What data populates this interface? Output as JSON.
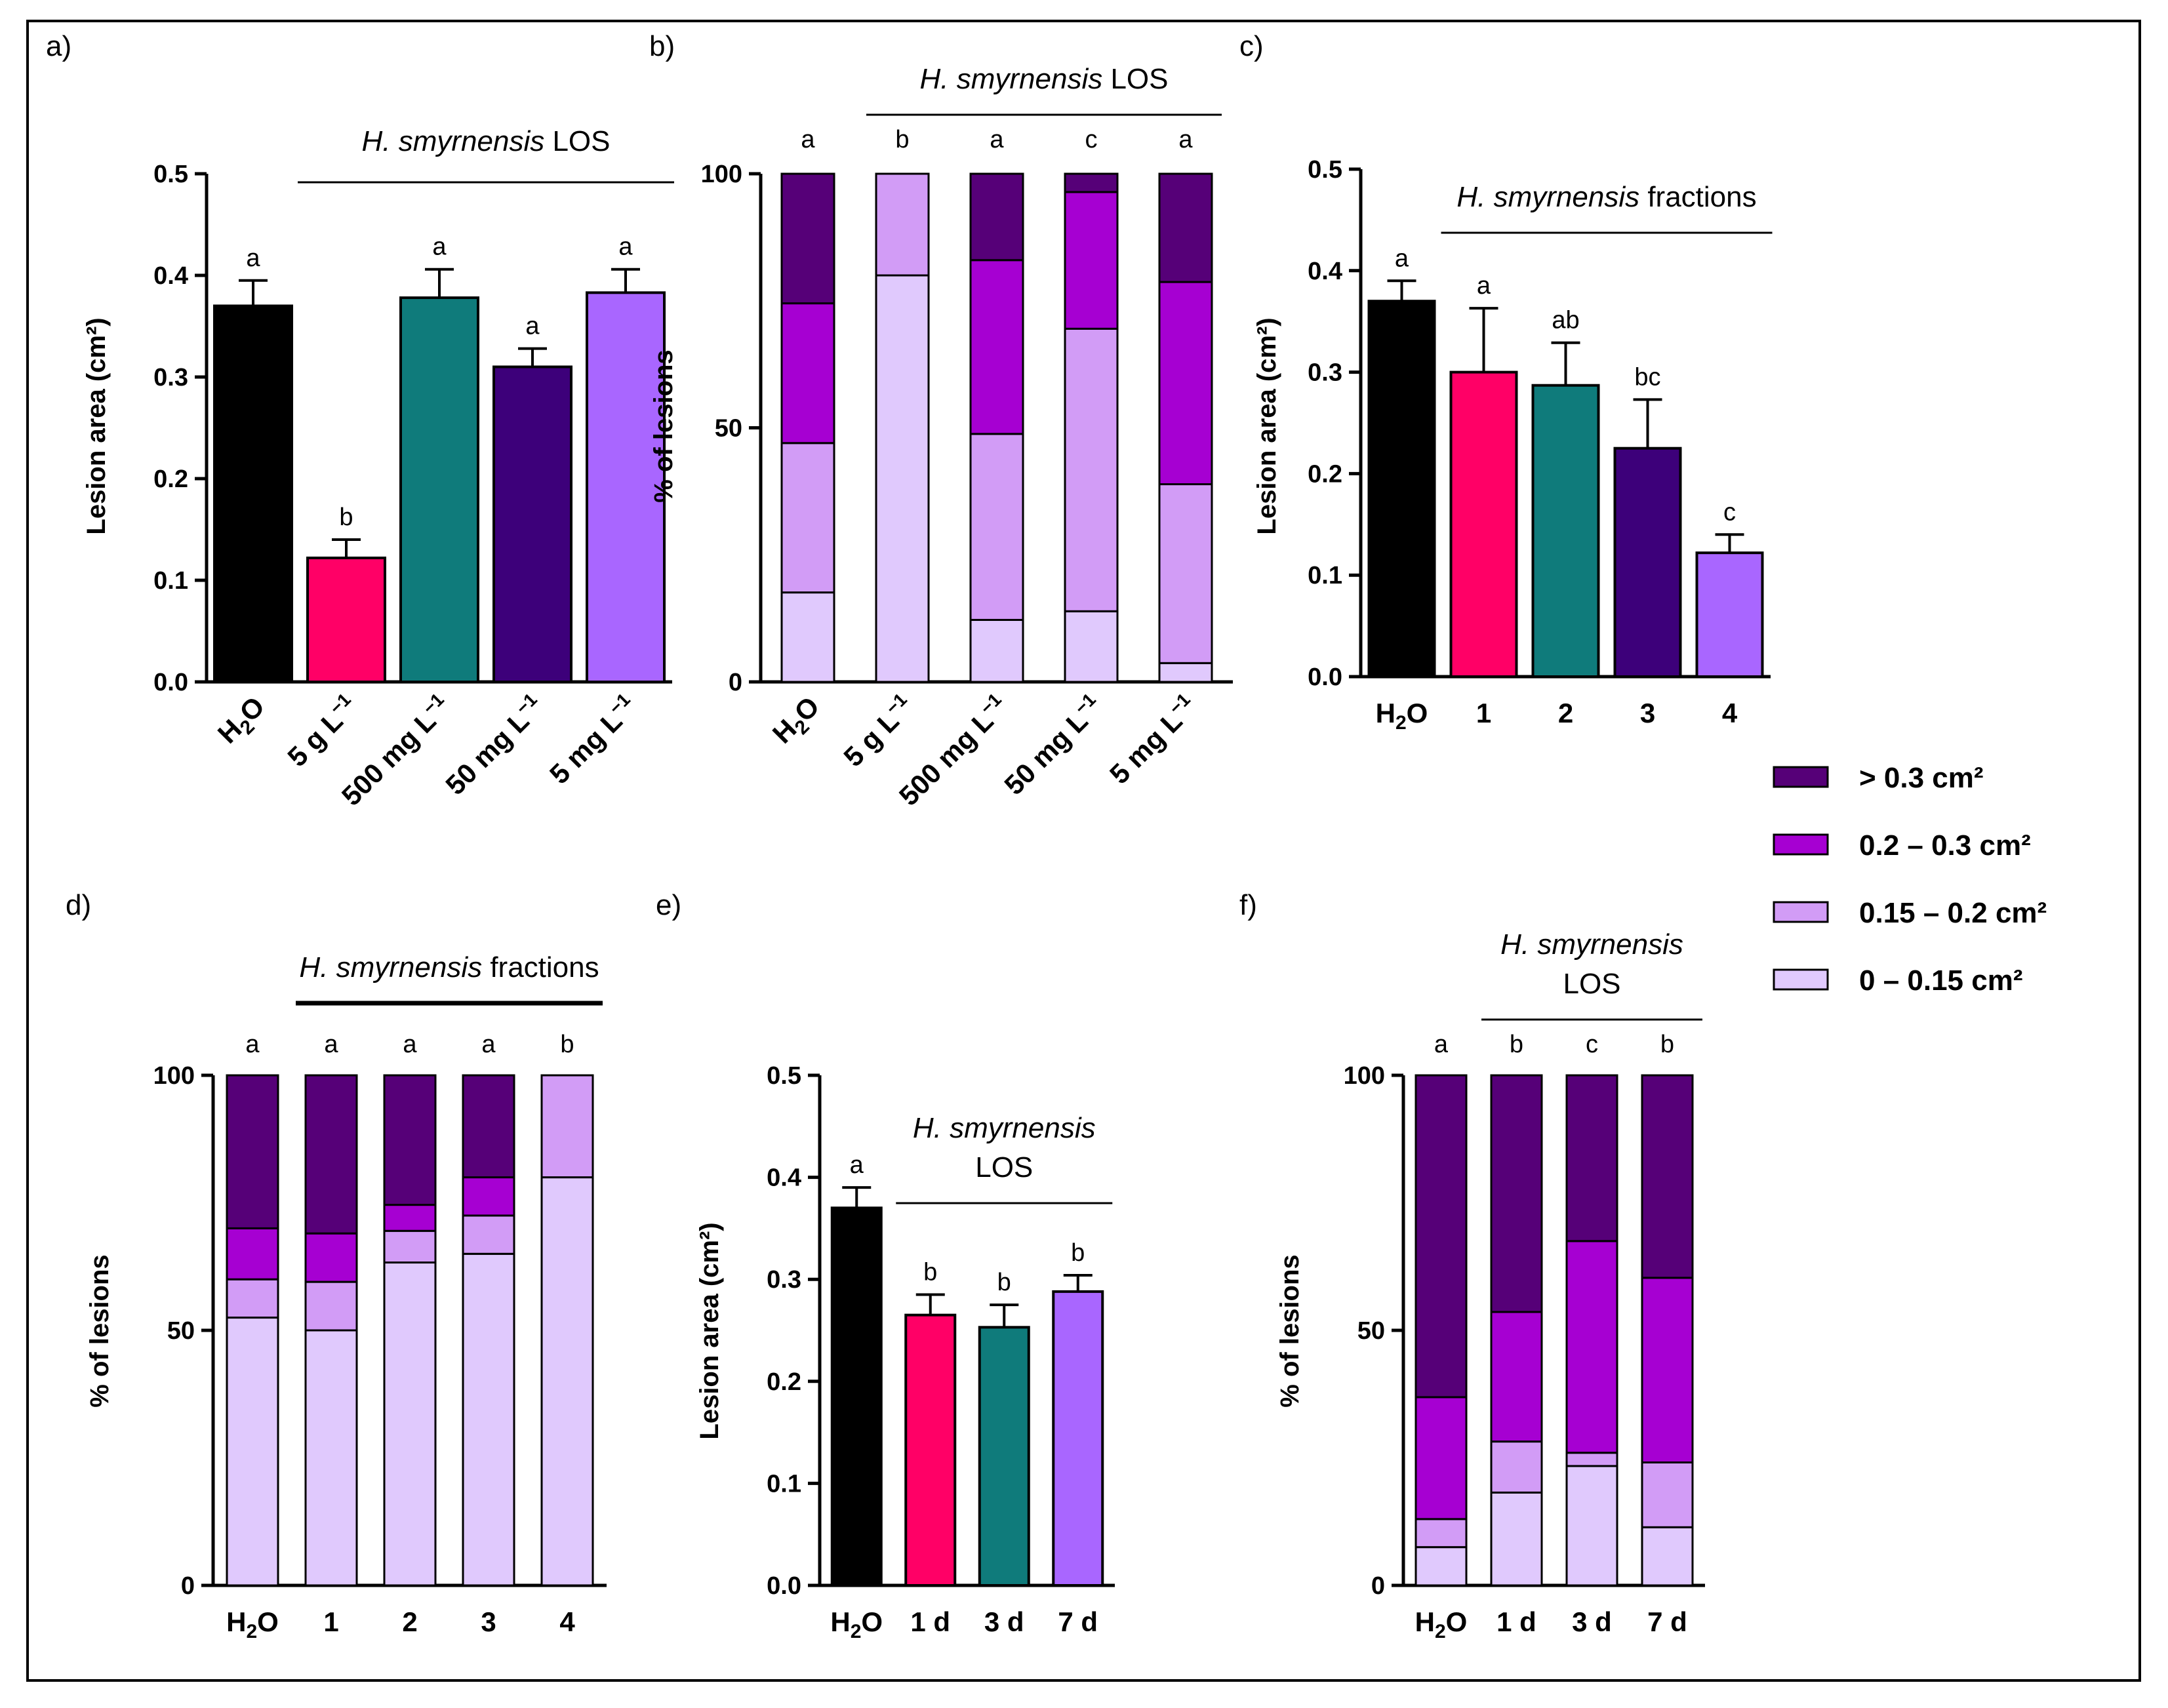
{
  "colors": {
    "black": "#000000",
    "pink": "#ff0066",
    "teal": "#0f7b7b",
    "indigo": "#3d007a",
    "lavender": "#a966ff",
    "cat_gt03": "#560078",
    "cat_02_03": "#a600d2",
    "cat_015_02": "#d29cf6",
    "cat_0_015": "#e0c9fd"
  },
  "legend": {
    "items": [
      {
        "label": "> 0.3 cm²",
        "color_key": "cat_gt03"
      },
      {
        "label": "0.2 – 0.3 cm²",
        "color_key": "cat_02_03"
      },
      {
        "label": "0.15 – 0.2 cm²",
        "color_key": "cat_015_02"
      },
      {
        "label": "0 – 0.15 cm²",
        "color_key": "cat_0_015"
      }
    ]
  },
  "chart_data": [
    {
      "id": "a",
      "panel_label": "a)",
      "type": "bar",
      "title": [
        "H. smyrnensis LOS"
      ],
      "title_italic": "H. smyrnensis",
      "ylabel": "Lesion area (cm²)",
      "ylim": [
        0,
        0.5
      ],
      "yticks": [
        "0.0",
        "0.1",
        "0.2",
        "0.3",
        "0.4",
        "0.5"
      ],
      "categories": [
        "H2O",
        "5 g L−1",
        "500 mg L−1",
        "50 mg L−1",
        "5 mg L−1"
      ],
      "values": [
        0.37,
        0.122,
        0.378,
        0.31,
        0.383
      ],
      "errors": [
        0.025,
        0.018,
        0.028,
        0.018,
        0.023
      ],
      "letters": [
        "a",
        "b",
        "a",
        "a",
        "a"
      ],
      "bar_colors": [
        "black",
        "pink",
        "teal",
        "indigo",
        "lavender"
      ],
      "title_span": [
        1,
        4
      ],
      "rotate_x": true
    },
    {
      "id": "b",
      "panel_label": "b)",
      "type": "stacked-bar",
      "title": [
        "H. smyrnensis LOS"
      ],
      "title_italic": "H. smyrnensis",
      "ylabel": "% of lesions",
      "ylim": [
        0,
        100
      ],
      "yticks": [
        "0",
        "50",
        "100"
      ],
      "categories": [
        "H2O",
        "5 g L−1",
        "500 mg L−1",
        "50 mg L−1",
        "5 mg L−1"
      ],
      "series": [
        {
          "name": "0 – 0.15 cm²",
          "values": [
            17.6,
            80,
            12.2,
            13.9,
            3.7
          ]
        },
        {
          "name": "0.15 – 0.2 cm²",
          "values": [
            29.4,
            20,
            36.6,
            55.6,
            35.2
          ]
        },
        {
          "name": "0.2 – 0.3 cm²",
          "values": [
            27.5,
            0,
            34.2,
            26.9,
            39.8
          ]
        },
        {
          "name": "> 0.3 cm²",
          "values": [
            25.5,
            0,
            17,
            3.6,
            21.3
          ]
        }
      ],
      "letters": [
        "a",
        "b",
        "a",
        "c",
        "a"
      ],
      "title_span": [
        1,
        4
      ],
      "rotate_x": true
    },
    {
      "id": "c",
      "panel_label": "c)",
      "type": "bar",
      "title": [
        "H. smyrnensis fractions"
      ],
      "title_italic": "H. smyrnensis",
      "ylabel": "Lesion area (cm²)",
      "ylim": [
        0,
        0.5
      ],
      "yticks": [
        "0.0",
        "0.1",
        "0.2",
        "0.3",
        "0.4",
        "0.5"
      ],
      "categories": [
        "H2O",
        "1",
        "2",
        "3",
        "4"
      ],
      "values": [
        0.37,
        0.3,
        0.287,
        0.225,
        0.122
      ],
      "errors": [
        0.02,
        0.063,
        0.042,
        0.048,
        0.018
      ],
      "letters": [
        "a",
        "a",
        "ab",
        "bc",
        "c"
      ],
      "bar_colors": [
        "black",
        "pink",
        "teal",
        "indigo",
        "lavender"
      ],
      "title_span": [
        1,
        4
      ],
      "rotate_x": false
    },
    {
      "id": "d",
      "panel_label": "d)",
      "type": "stacked-bar",
      "title": [
        "H. smyrnensis fractions"
      ],
      "title_italic": "H. smyrnensis",
      "ylabel": "% of lesions",
      "ylim": [
        0,
        100
      ],
      "yticks": [
        "0",
        "50",
        "100"
      ],
      "categories": [
        "H2O",
        "1",
        "2",
        "3",
        "4"
      ],
      "series": [
        {
          "name": "0 – 0.15 cm²",
          "values": [
            52.5,
            50,
            63.3,
            65,
            80
          ]
        },
        {
          "name": "0.15 – 0.2 cm²",
          "values": [
            7.5,
            9.5,
            6.2,
            7.5,
            20
          ]
        },
        {
          "name": "0.2 – 0.3 cm²",
          "values": [
            10,
            9.5,
            5.1,
            7.5,
            0
          ]
        },
        {
          "name": "> 0.3 cm²",
          "values": [
            30,
            31,
            25.4,
            20,
            0
          ]
        }
      ],
      "letters": [
        "a",
        "a",
        "a",
        "a",
        "b"
      ],
      "title_span": [
        1,
        4
      ],
      "rotate_x": false
    },
    {
      "id": "e",
      "panel_label": "e)",
      "type": "bar",
      "title": [
        "H. smyrnensis",
        "LOS"
      ],
      "title_italic": "H. smyrnensis",
      "ylabel": "Lesion area (cm²)",
      "ylim": [
        0,
        0.5
      ],
      "yticks": [
        "0.0",
        "0.1",
        "0.2",
        "0.3",
        "0.4",
        "0.5"
      ],
      "categories": [
        "H2O",
        "1 d",
        "3 d",
        "7 d"
      ],
      "values": [
        0.37,
        0.265,
        0.253,
        0.288
      ],
      "errors": [
        0.02,
        0.02,
        0.022,
        0.016
      ],
      "letters": [
        "a",
        "b",
        "b",
        "b"
      ],
      "bar_colors": [
        "black",
        "pink",
        "teal",
        "lavender"
      ],
      "title_span": [
        1,
        3
      ],
      "rotate_x": false
    },
    {
      "id": "f",
      "panel_label": "f)",
      "type": "stacked-bar",
      "title": [
        "H. smyrnensis",
        "LOS"
      ],
      "title_italic": "H. smyrnensis",
      "ylabel": "% of lesions",
      "ylim": [
        0,
        100
      ],
      "yticks": [
        "0",
        "50",
        "100"
      ],
      "categories": [
        "H2O",
        "1 d",
        "3 d",
        "7 d"
      ],
      "series": [
        {
          "name": "0 – 0.15 cm²",
          "values": [
            7.5,
            18.2,
            23.4,
            11.4
          ]
        },
        {
          "name": "0.15 – 0.2 cm²",
          "values": [
            5.5,
            10,
            2.6,
            12.7
          ]
        },
        {
          "name": "0.2 – 0.3 cm²",
          "values": [
            23.9,
            25.4,
            41.5,
            36.2
          ]
        },
        {
          "name": "> 0.3 cm²",
          "values": [
            63.1,
            46.4,
            32.5,
            39.7
          ]
        }
      ],
      "letters": [
        "a",
        "b",
        "c",
        "b"
      ],
      "title_span": [
        1,
        3
      ],
      "rotate_x": false
    }
  ]
}
